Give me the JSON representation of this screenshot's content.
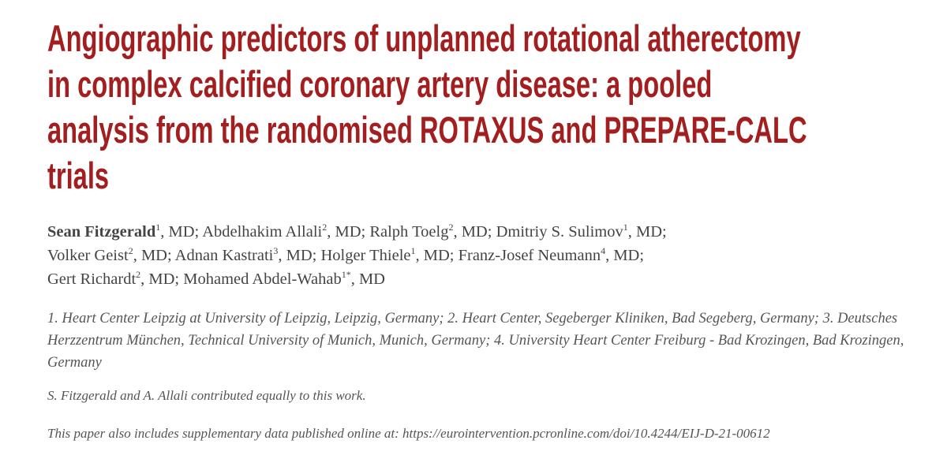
{
  "title_lines": [
    "Angiographic predictors of unplanned rotational atherectomy",
    "in complex calcified coronary artery disease: a pooled",
    "analysis from the randomised ROTAXUS and PREPARE-CALC",
    "trials"
  ],
  "author_lines": [
    [
      {
        "name": "Sean Fitzgerald",
        "sup": "1",
        "suffix": ", MD;"
      },
      {
        "name": "Abdelhakim Allali",
        "sup": "2",
        "suffix": ", MD;"
      },
      {
        "name": "Ralph Toelg",
        "sup": "2",
        "suffix": ", MD;"
      },
      {
        "name": "Dmitriy S. Sulimov",
        "sup": "1",
        "suffix": ", MD;"
      }
    ],
    [
      {
        "name": "Volker Geist",
        "sup": "2",
        "suffix": ", MD;"
      },
      {
        "name": "Adnan Kastrati",
        "sup": "3",
        "suffix": ", MD;"
      },
      {
        "name": "Holger Thiele",
        "sup": "1",
        "suffix": ", MD;"
      },
      {
        "name": "Franz-Josef Neumann",
        "sup": "4",
        "suffix": ", MD;"
      }
    ],
    [
      {
        "name": "Gert Richardt",
        "sup": "2",
        "suffix": ", MD;"
      },
      {
        "name": "Mohamed Abdel-Wahab",
        "sup": "1*",
        "suffix": ", MD"
      }
    ]
  ],
  "affiliations": "1. Heart Center Leipzig at University of Leipzig, Leipzig, Germany; 2. Heart Center, Segeberger Kliniken, Bad Segeberg, Germany; 3. Deutsches Herzzentrum München, Technical University of Munich, Munich, Germany; 4. University Heart Center Freiburg - Bad Krozingen, Bad Krozingen, Germany",
  "note": "S. Fitzgerald and A. Allali contributed equally to this work.",
  "supplementary": "This paper also includes supplementary data published online at: https://eurointervention.pcronline.com/doi/10.4244/EIJ-D-21-00612"
}
